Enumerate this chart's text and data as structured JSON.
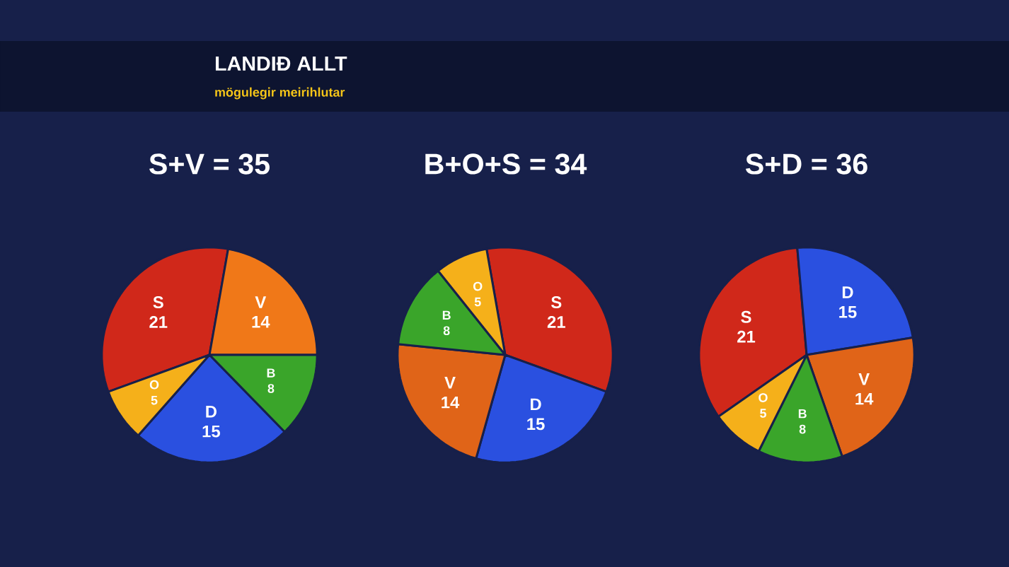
{
  "chart_data": [
    {
      "type": "pie",
      "title": "S+V = 35",
      "annotations": [
        "LANDIÐ ALLT",
        "mögulegir meirihlutar"
      ],
      "categories": [
        "S",
        "V",
        "B",
        "D",
        "O"
      ],
      "values": [
        21,
        14,
        8,
        15,
        5
      ],
      "colors": [
        "#d0281a",
        "#f07818",
        "#3aa52a",
        "#2a50e0",
        "#f5b01a"
      ],
      "data_labels": true
    },
    {
      "type": "pie",
      "title": "B+O+S = 34",
      "categories": [
        "S",
        "D",
        "V",
        "B",
        "O"
      ],
      "values": [
        21,
        15,
        14,
        8,
        5
      ],
      "colors": [
        "#d0281a",
        "#2a50e0",
        "#e06418",
        "#3aa52a",
        "#f5b01a"
      ],
      "data_labels": true
    },
    {
      "type": "pie",
      "title": "S+D = 36",
      "categories": [
        "S",
        "D",
        "V",
        "B",
        "O"
      ],
      "values": [
        21,
        15,
        14,
        8,
        5
      ],
      "colors": [
        "#d0281a",
        "#2a50e0",
        "#e06418",
        "#3aa52a",
        "#f5b01a"
      ],
      "data_labels": true
    }
  ]
}
